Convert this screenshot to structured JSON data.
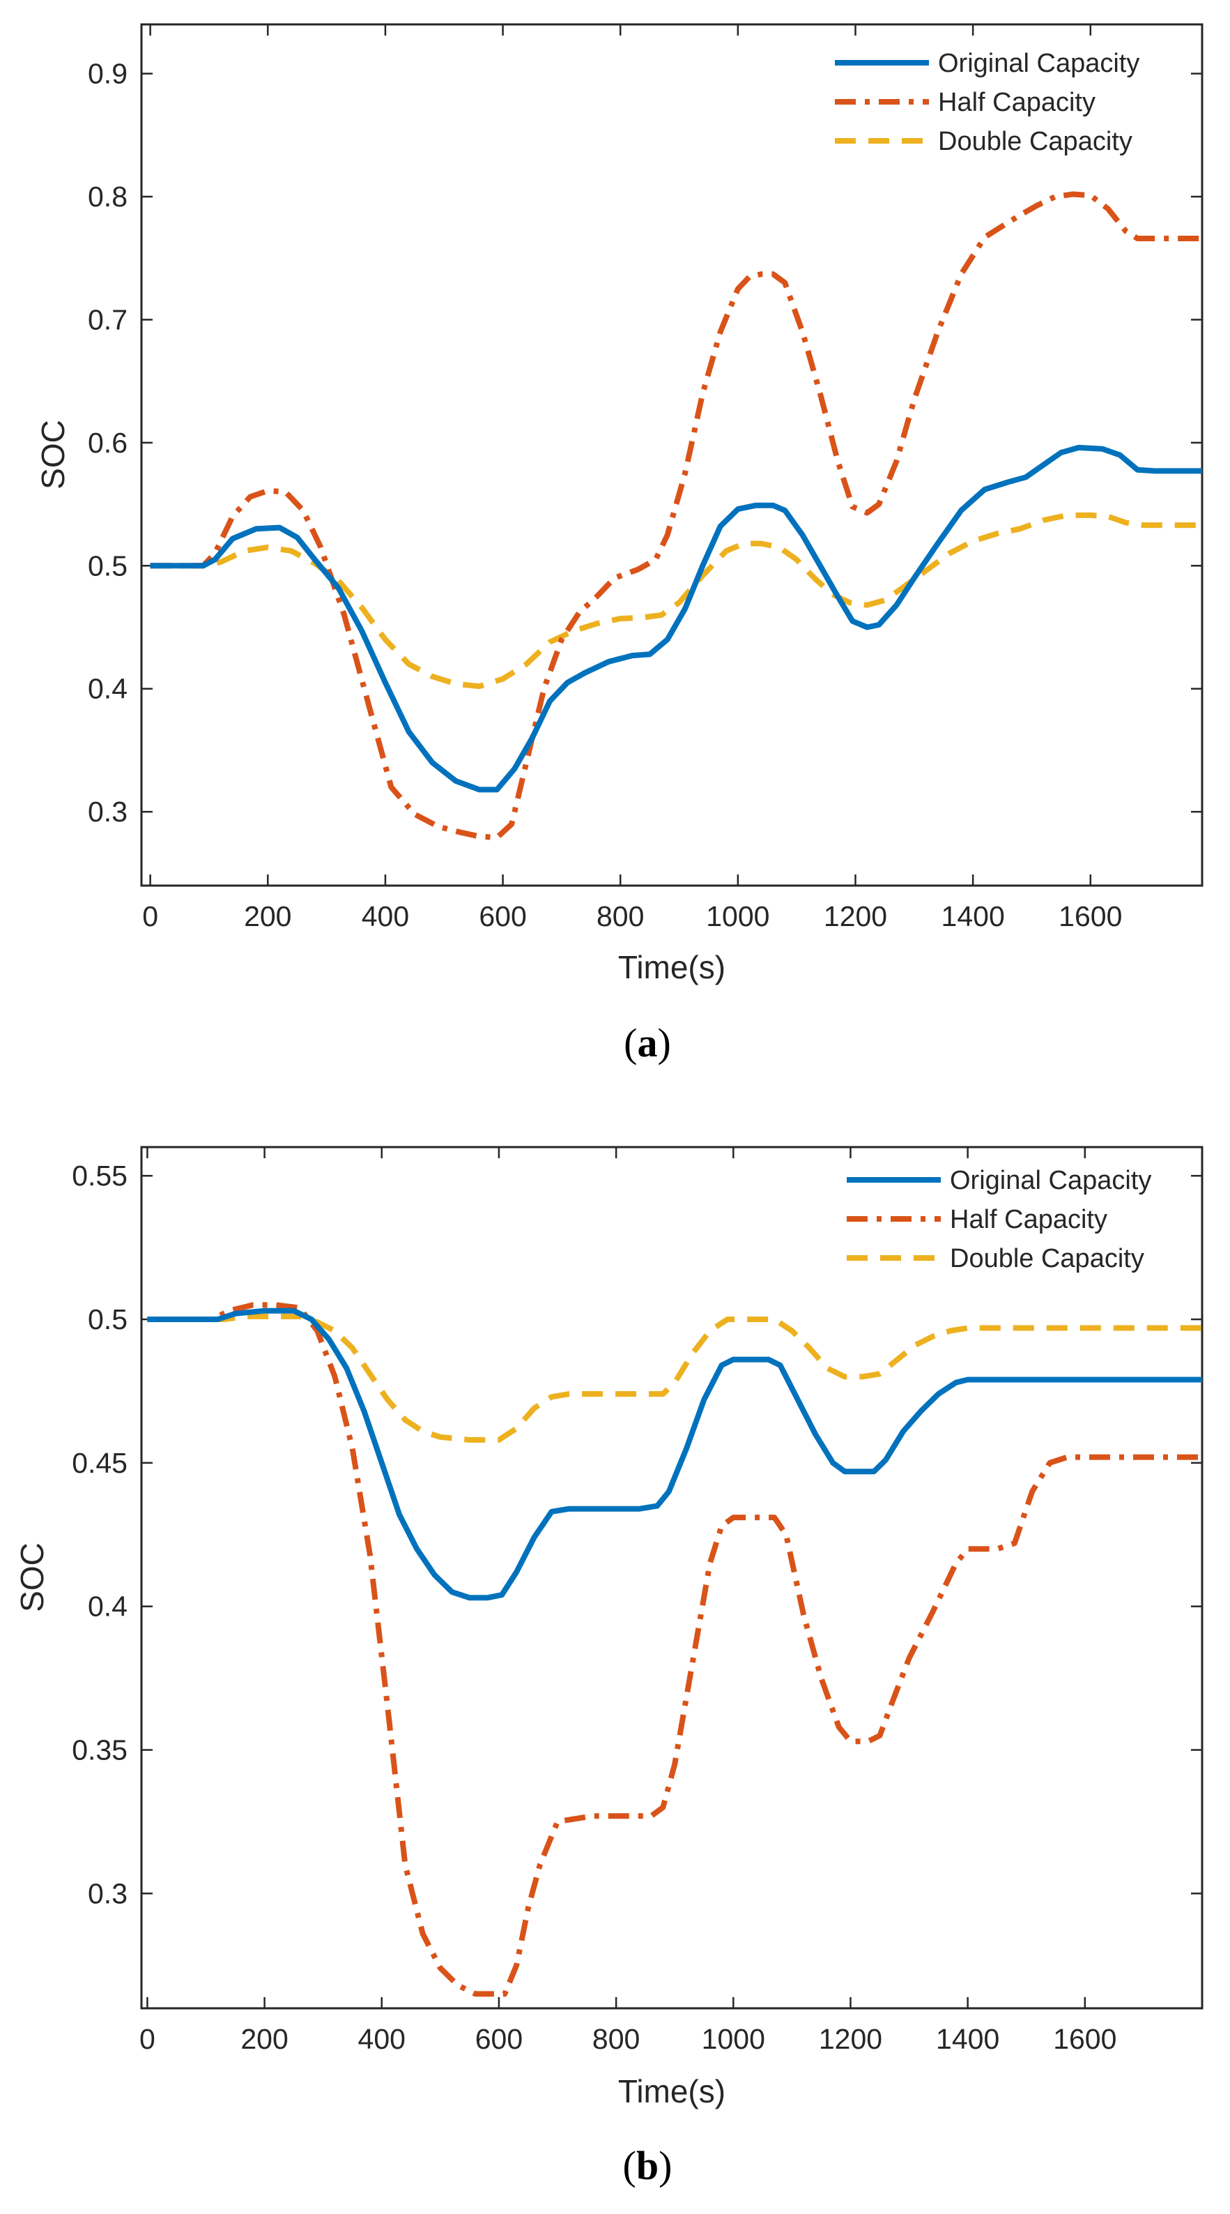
{
  "chart_data": [
    {
      "type": "line",
      "panel_label": "a",
      "title": "",
      "xlabel": "Time(s)",
      "ylabel": "SOC",
      "xlim": [
        -15,
        1790
      ],
      "ylim": [
        0.24,
        0.94
      ],
      "xticks": [
        "0",
        "200",
        "400",
        "600",
        "800",
        "1000",
        "1200",
        "1400",
        "1600"
      ],
      "yticks": [
        "0.3",
        "0.4",
        "0.5",
        "0.6",
        "0.7",
        "0.8",
        "0.9"
      ],
      "grid": false,
      "legend": "top-right",
      "series": [
        {
          "name": "Original Capacity",
          "color": "#0072BD",
          "style": "solid",
          "x": [
            0,
            90,
            110,
            140,
            180,
            220,
            250,
            280,
            320,
            360,
            400,
            440,
            480,
            520,
            560,
            590,
            620,
            650,
            680,
            710,
            740,
            780,
            820,
            850,
            880,
            910,
            940,
            970,
            1000,
            1030,
            1060,
            1080,
            1110,
            1140,
            1170,
            1195,
            1220,
            1240,
            1270,
            1300,
            1340,
            1380,
            1420,
            1460,
            1490,
            1520,
            1550,
            1580,
            1620,
            1650,
            1680,
            1710,
            1790
          ],
          "values": [
            0.5,
            0.5,
            0.505,
            0.522,
            0.53,
            0.531,
            0.523,
            0.505,
            0.482,
            0.447,
            0.405,
            0.365,
            0.34,
            0.325,
            0.318,
            0.318,
            0.335,
            0.36,
            0.39,
            0.405,
            0.413,
            0.422,
            0.427,
            0.428,
            0.44,
            0.465,
            0.5,
            0.532,
            0.546,
            0.549,
            0.549,
            0.545,
            0.525,
            0.5,
            0.475,
            0.455,
            0.45,
            0.452,
            0.468,
            0.49,
            0.518,
            0.545,
            0.562,
            0.568,
            0.572,
            0.582,
            0.592,
            0.596,
            0.595,
            0.59,
            0.578,
            0.577,
            0.577
          ]
        },
        {
          "name": "Half Capacity",
          "color": "#D95319",
          "style": "dashdot",
          "x": [
            0,
            90,
            110,
            140,
            170,
            200,
            230,
            260,
            290,
            330,
            370,
            410,
            450,
            490,
            530,
            560,
            590,
            615,
            640,
            670,
            700,
            730,
            760,
            790,
            830,
            860,
            880,
            910,
            940,
            970,
            1000,
            1020,
            1040,
            1060,
            1080,
            1110,
            1140,
            1170,
            1195,
            1220,
            1240,
            1270,
            1300,
            1340,
            1380,
            1420,
            1450,
            1480,
            1510,
            1540,
            1570,
            1600,
            1630,
            1660,
            1680,
            1790
          ],
          "values": [
            0.5,
            0.5,
            0.51,
            0.54,
            0.556,
            0.561,
            0.56,
            0.545,
            0.515,
            0.46,
            0.39,
            0.32,
            0.298,
            0.288,
            0.283,
            0.28,
            0.279,
            0.29,
            0.34,
            0.4,
            0.44,
            0.462,
            0.475,
            0.49,
            0.497,
            0.505,
            0.525,
            0.575,
            0.64,
            0.69,
            0.725,
            0.735,
            0.737,
            0.737,
            0.73,
            0.69,
            0.64,
            0.585,
            0.548,
            0.543,
            0.55,
            0.585,
            0.635,
            0.69,
            0.737,
            0.767,
            0.776,
            0.785,
            0.793,
            0.8,
            0.802,
            0.801,
            0.79,
            0.772,
            0.766,
            0.766
          ]
        },
        {
          "name": "Double Capacity",
          "color": "#EDB120",
          "style": "dashed",
          "x": [
            0,
            90,
            120,
            160,
            200,
            240,
            280,
            320,
            360,
            400,
            440,
            480,
            520,
            560,
            600,
            640,
            680,
            720,
            760,
            800,
            840,
            870,
            900,
            940,
            980,
            1010,
            1040,
            1070,
            1100,
            1130,
            1160,
            1190,
            1220,
            1250,
            1280,
            1320,
            1360,
            1400,
            1440,
            1480,
            1520,
            1560,
            1600,
            1630,
            1660,
            1690,
            1790
          ],
          "values": [
            0.5,
            0.5,
            0.503,
            0.512,
            0.515,
            0.512,
            0.502,
            0.488,
            0.466,
            0.44,
            0.42,
            0.41,
            0.404,
            0.402,
            0.408,
            0.42,
            0.438,
            0.447,
            0.453,
            0.457,
            0.458,
            0.46,
            0.47,
            0.492,
            0.512,
            0.518,
            0.518,
            0.515,
            0.505,
            0.49,
            0.477,
            0.47,
            0.468,
            0.472,
            0.482,
            0.496,
            0.51,
            0.52,
            0.526,
            0.53,
            0.537,
            0.541,
            0.541,
            0.54,
            0.535,
            0.533,
            0.533
          ]
        }
      ]
    },
    {
      "type": "line",
      "panel_label": "b",
      "title": "",
      "xlabel": "Time(s)",
      "ylabel": "SOC",
      "xlim": [
        -10,
        1800
      ],
      "ylim": [
        0.26,
        0.56
      ],
      "xticks": [
        "0",
        "200",
        "400",
        "600",
        "800",
        "1000",
        "1200",
        "1400",
        "1600"
      ],
      "yticks": [
        "0.3",
        "0.35",
        "0.4",
        "0.45",
        "0.5",
        "0.55"
      ],
      "grid": false,
      "legend": "top-right",
      "series": [
        {
          "name": "Original Capacity",
          "color": "#0072BD",
          "style": "solid",
          "x": [
            0,
            90,
            120,
            150,
            200,
            250,
            280,
            310,
            340,
            370,
            400,
            430,
            460,
            490,
            520,
            550,
            580,
            605,
            630,
            660,
            690,
            720,
            780,
            840,
            870,
            890,
            920,
            950,
            980,
            1000,
            1030,
            1060,
            1080,
            1110,
            1140,
            1170,
            1190,
            1210,
            1240,
            1260,
            1290,
            1320,
            1350,
            1380,
            1400,
            1500,
            1600,
            1800
          ],
          "values": [
            0.5,
            0.5,
            0.5,
            0.502,
            0.503,
            0.503,
            0.5,
            0.493,
            0.483,
            0.468,
            0.45,
            0.432,
            0.42,
            0.411,
            0.405,
            0.403,
            0.403,
            0.404,
            0.412,
            0.424,
            0.433,
            0.434,
            0.434,
            0.434,
            0.435,
            0.44,
            0.455,
            0.472,
            0.484,
            0.486,
            0.486,
            0.486,
            0.484,
            0.472,
            0.46,
            0.45,
            0.447,
            0.447,
            0.447,
            0.451,
            0.461,
            0.468,
            0.474,
            0.478,
            0.479,
            0.479,
            0.479,
            0.479
          ]
        },
        {
          "name": "Half Capacity",
          "color": "#D95319",
          "style": "dashdot",
          "x": [
            0,
            90,
            110,
            140,
            180,
            220,
            260,
            290,
            320,
            350,
            380,
            410,
            440,
            470,
            500,
            530,
            560,
            590,
            610,
            630,
            650,
            670,
            700,
            760,
            820,
            860,
            880,
            900,
            930,
            960,
            980,
            1000,
            1040,
            1070,
            1090,
            1120,
            1150,
            1180,
            1200,
            1230,
            1250,
            1270,
            1300,
            1340,
            1380,
            1400,
            1450,
            1480,
            1510,
            1540,
            1570,
            1800
          ],
          "values": [
            0.5,
            0.5,
            0.5,
            0.503,
            0.505,
            0.505,
            0.504,
            0.496,
            0.48,
            0.455,
            0.418,
            0.365,
            0.31,
            0.286,
            0.274,
            0.268,
            0.265,
            0.265,
            0.265,
            0.275,
            0.295,
            0.31,
            0.325,
            0.327,
            0.327,
            0.327,
            0.33,
            0.345,
            0.38,
            0.415,
            0.428,
            0.431,
            0.431,
            0.431,
            0.425,
            0.397,
            0.375,
            0.358,
            0.353,
            0.353,
            0.355,
            0.366,
            0.382,
            0.398,
            0.415,
            0.42,
            0.42,
            0.422,
            0.44,
            0.45,
            0.452,
            0.452
          ]
        },
        {
          "name": "Double Capacity",
          "color": "#EDB120",
          "style": "dashed",
          "x": [
            0,
            90,
            130,
            170,
            220,
            260,
            290,
            320,
            350,
            380,
            410,
            440,
            470,
            500,
            550,
            600,
            630,
            660,
            690,
            720,
            800,
            880,
            900,
            930,
            960,
            990,
            1040,
            1070,
            1100,
            1130,
            1160,
            1190,
            1220,
            1250,
            1280,
            1310,
            1340,
            1370,
            1400,
            1500,
            1800
          ],
          "values": [
            0.5,
            0.5,
            0.5,
            0.501,
            0.501,
            0.501,
            0.499,
            0.496,
            0.49,
            0.481,
            0.472,
            0.465,
            0.461,
            0.459,
            0.458,
            0.458,
            0.462,
            0.469,
            0.473,
            0.474,
            0.474,
            0.474,
            0.478,
            0.488,
            0.496,
            0.5,
            0.5,
            0.5,
            0.496,
            0.49,
            0.483,
            0.48,
            0.48,
            0.481,
            0.486,
            0.491,
            0.494,
            0.496,
            0.497,
            0.497,
            0.497
          ]
        }
      ]
    }
  ]
}
